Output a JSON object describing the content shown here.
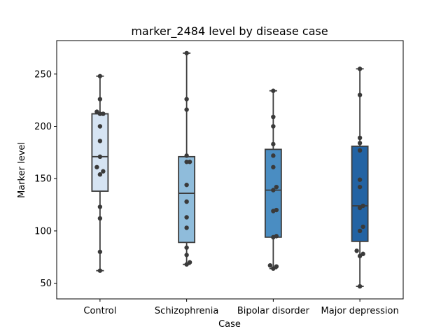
{
  "chart_data": {
    "type": "box",
    "title": "marker_2484 level by disease case",
    "xlabel": "Case",
    "ylabel": "Marker level",
    "ylim": [
      35,
      282
    ],
    "yticks": [
      50,
      100,
      150,
      200,
      250
    ],
    "grid": false,
    "categories": [
      "Control",
      "Schizophrenia",
      "Bipolar disorder",
      "Major depression"
    ],
    "colors": [
      "#d6e4f3",
      "#8fbcdb",
      "#4a8dc2",
      "#2363a3"
    ],
    "boxes": [
      {
        "category": "Control",
        "min": 62,
        "q1": 138,
        "median": 171,
        "q3": 212,
        "max": 248
      },
      {
        "category": "Schizophrenia",
        "min": 68,
        "q1": 89,
        "median": 136,
        "q3": 171,
        "max": 270
      },
      {
        "category": "Bipolar disorder",
        "min": 64,
        "q1": 94,
        "median": 139,
        "q3": 178,
        "max": 234
      },
      {
        "category": "Major depression",
        "min": 47,
        "q1": 90,
        "median": 124,
        "q3": 181,
        "max": 255
      }
    ],
    "points": [
      {
        "category": "Control",
        "values": [
          248,
          226,
          214,
          212,
          212,
          200,
          186,
          171,
          161,
          157,
          154,
          123,
          112,
          80,
          62
        ]
      },
      {
        "category": "Schizophrenia",
        "values": [
          270,
          226,
          216,
          172,
          166,
          166,
          144,
          128,
          113,
          103,
          84,
          77,
          70,
          68
        ]
      },
      {
        "category": "Bipolar disorder",
        "values": [
          234,
          209,
          200,
          183,
          172,
          161,
          142,
          139,
          120,
          119,
          95,
          94,
          67,
          66,
          64
        ]
      },
      {
        "category": "Major depression",
        "values": [
          255,
          230,
          189,
          184,
          177,
          149,
          142,
          124,
          122,
          104,
          100,
          81,
          78,
          76,
          47
        ]
      }
    ]
  }
}
